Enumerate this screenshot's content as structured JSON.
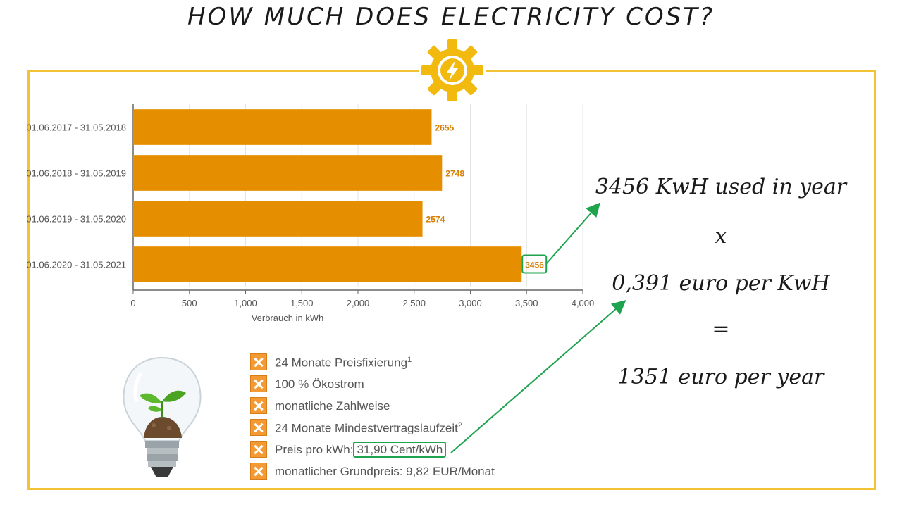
{
  "title": "HOW MUCH DOES ELECTRICITY COST?",
  "icon": "lightning-gear-icon",
  "colors": {
    "frame": "#f2c435",
    "bar": "#e58f00",
    "bar_label": "#d67f00",
    "arrow": "#1fa34f",
    "checkbox": "#f39a35"
  },
  "chart_data": {
    "type": "bar",
    "orientation": "horizontal",
    "categories": [
      "01.06.2017 - 31.05.2018",
      "01.06.2018 - 31.05.2019",
      "01.06.2019 - 31.05.2020",
      "01.06.2020 - 31.05.2021"
    ],
    "values": [
      2655,
      2748,
      2574,
      3456
    ],
    "value_labels": [
      "2655",
      "2748",
      "2574",
      "3456"
    ],
    "xlabel": "Verbrauch in kWh",
    "ylabel": "",
    "xlim": [
      0,
      4000
    ],
    "xticks": [
      0,
      500,
      1000,
      1500,
      2000,
      2500,
      3000,
      3500,
      4000
    ],
    "xtick_labels": [
      "0",
      "500",
      "1,000",
      "1,500",
      "2,000",
      "2,500",
      "3,000",
      "3,500",
      "4,000"
    ],
    "grid": true,
    "highlighted_value": "3456"
  },
  "calculation": {
    "line1": "3456 KwH used in year",
    "operator": "x",
    "line2": "0,391 euro per KwH",
    "equals": "=",
    "result": "1351 euro per year"
  },
  "features": [
    {
      "text": "24 Monate Preisfixierung",
      "sup": "1"
    },
    {
      "text": "100 % Ökostrom",
      "sup": ""
    },
    {
      "text": "monatliche Zahlweise",
      "sup": ""
    },
    {
      "text": "24 Monate Mindestvertragslaufzeit",
      "sup": "2"
    },
    {
      "text": "Preis pro kWh:",
      "sup": "",
      "highlight": "31,90 Cent/kWh"
    },
    {
      "text": "monatlicher Grundpreis: 9,82 EUR/Monat",
      "sup": ""
    }
  ],
  "illustration": "lightbulb-plant-icon"
}
